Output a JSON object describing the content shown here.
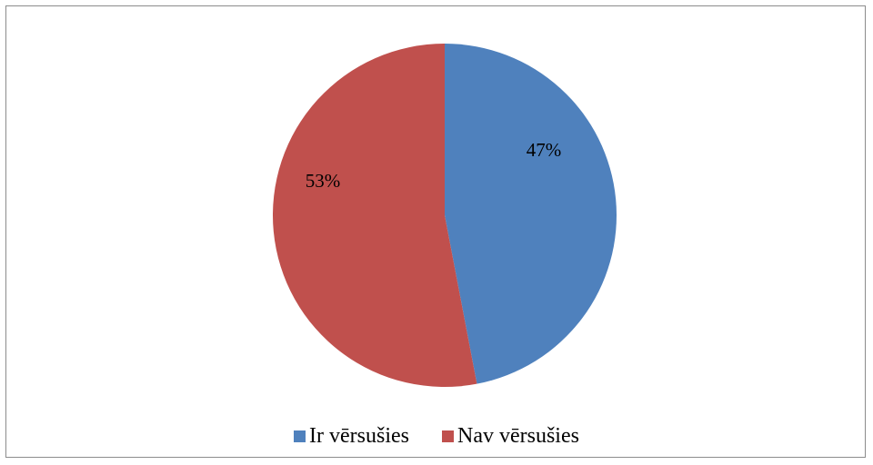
{
  "chart_data": {
    "type": "pie",
    "categories": [
      "Ir vērsušies",
      "Nav vērsušies"
    ],
    "values": [
      47,
      53
    ],
    "data_labels": [
      "47%",
      "53%"
    ],
    "colors": [
      "#4F81BD",
      "#C0504D"
    ],
    "start_angle": "top, clockwise",
    "legend_position": "bottom"
  }
}
